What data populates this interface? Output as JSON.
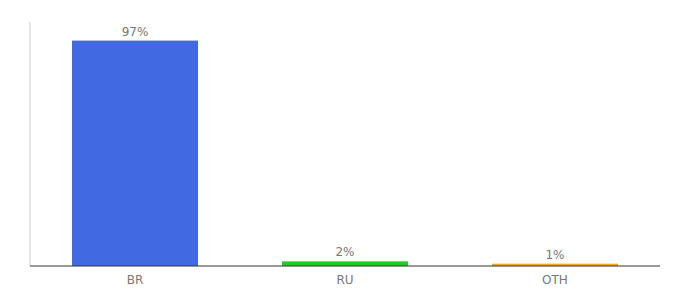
{
  "chart_data": {
    "type": "bar",
    "categories": [
      "BR",
      "RU",
      "OTH"
    ],
    "values": [
      97,
      2,
      1
    ],
    "value_labels": [
      "97%",
      "2%",
      "1%"
    ],
    "colors": [
      "#4169e1",
      "#22cc22",
      "#f5a623"
    ],
    "ylim": [
      0,
      105
    ],
    "data_labels": true,
    "tick_labels": "x",
    "grid": false
  }
}
